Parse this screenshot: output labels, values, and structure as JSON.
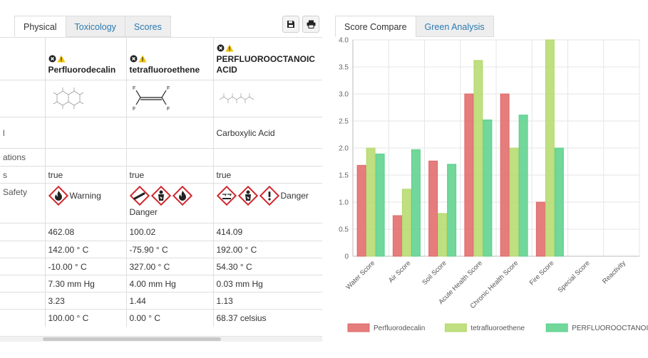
{
  "left_tabs": [
    {
      "label": "Physical",
      "active": true
    },
    {
      "label": "Toxicology",
      "active": false
    },
    {
      "label": "Scores",
      "active": false
    }
  ],
  "toolbar": {
    "save_icon": "save-icon",
    "print_icon": "print-icon"
  },
  "chemicals": [
    {
      "name": "Perfluorodecalin",
      "structure": "Perfluorodecalin fused-ring structure"
    },
    {
      "name": "tetrafluoroethene",
      "structure": "F2C=CF2 structure"
    },
    {
      "name": "PERFLUOROOCTANOIC ACID",
      "structure": "Perfluorooctanoic acid chain structure"
    }
  ],
  "rows": [
    {
      "label": "",
      "values": [
        "",
        "",
        ""
      ]
    },
    {
      "label": "l",
      "values": [
        "",
        "",
        "Carboxylic Acid"
      ]
    },
    {
      "label": "ations",
      "values": [
        "",
        "",
        ""
      ]
    },
    {
      "label": "s",
      "values": [
        "true",
        "true",
        "true"
      ]
    },
    {
      "label": "Safety",
      "values": [
        "Warning",
        "Danger",
        "Danger"
      ]
    },
    {
      "label": "",
      "values": [
        "462.08",
        "100.02",
        "414.09"
      ]
    },
    {
      "label": "",
      "values": [
        "142.00 ° C",
        "-75.90 ° C",
        "192.00 ° C"
      ]
    },
    {
      "label": "",
      "values": [
        "-10.00 ° C",
        "327.00 ° C",
        "54.30 ° C"
      ]
    },
    {
      "label": "",
      "values": [
        "7.30 mm Hg",
        "4.00 mm Hg",
        "0.03 mm Hg"
      ]
    },
    {
      "label": "",
      "values": [
        "3.23",
        "1.44",
        "1.13"
      ]
    },
    {
      "label": "",
      "values": [
        "100.00 ° C",
        "0.00 ° C",
        "68.37 celsius"
      ]
    }
  ],
  "ghs": [
    [
      "flame"
    ],
    [
      "gas-cylinder",
      "health-hazard",
      "flame"
    ],
    [
      "corrosion",
      "health-hazard",
      "exclamation"
    ]
  ],
  "right_tabs": [
    {
      "label": "Score Compare",
      "active": true
    },
    {
      "label": "Green Analysis",
      "active": false
    }
  ],
  "chart_data": {
    "type": "bar",
    "categories": [
      "Water Score",
      "Air Score",
      "Soil Score",
      "Acute Health Score",
      "Chronic Health Score",
      "Fire Score",
      "Special Score",
      "Reactivity"
    ],
    "series": [
      {
        "name": "Perfluorodecalin",
        "values": [
          1.68,
          0.75,
          1.76,
          3.0,
          3.0,
          1.0,
          0,
          0
        ],
        "color": "#e06666"
      },
      {
        "name": "tetrafluoroethene",
        "values": [
          2.0,
          1.24,
          0.79,
          3.62,
          2.0,
          4.0,
          0,
          0
        ],
        "color": "#b4d96a"
      },
      {
        "name": "PERFLUOROOCTANOIC ACID",
        "values": [
          1.89,
          1.97,
          1.7,
          2.52,
          2.61,
          2.0,
          0,
          0
        ],
        "color": "#58d08a"
      }
    ],
    "ylim": [
      0,
      4
    ],
    "yticks": [
      "0",
      "0.5",
      "1.0",
      "1.5",
      "2.0",
      "2.5",
      "3.0",
      "3.5",
      "4.0"
    ],
    "grid": true,
    "legend_position": "bottom"
  }
}
